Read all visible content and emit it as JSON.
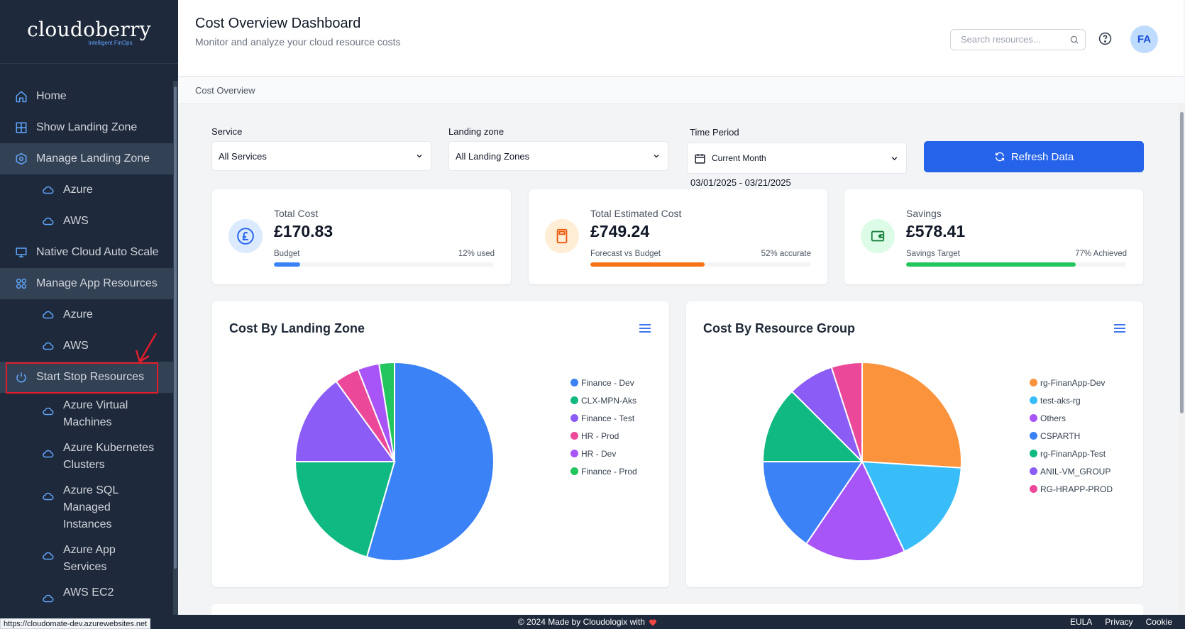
{
  "brand": {
    "name": "cloudoberry",
    "tagline": "Intelligent FinOps"
  },
  "sidebar": {
    "items": [
      {
        "label": "Home",
        "icon": "home-icon"
      },
      {
        "label": "Show Landing Zone",
        "icon": "grid-icon"
      },
      {
        "label": "Manage Landing Zone",
        "icon": "hexagon-settings-icon"
      },
      {
        "label": "Azure",
        "icon": "cloud-icon"
      },
      {
        "label": "AWS",
        "icon": "cloud-icon"
      },
      {
        "label": "Native Cloud Auto Scale",
        "icon": "monitor-icon"
      },
      {
        "label": "Manage App Resources",
        "icon": "apps-icon"
      },
      {
        "label": "Azure",
        "icon": "cloud-icon"
      },
      {
        "label": "AWS",
        "icon": "cloud-icon"
      },
      {
        "label": "Start Stop Resources",
        "icon": "power-icon"
      },
      {
        "label": "Azure Virtual Machines",
        "icon": "cloud-icon"
      },
      {
        "label": "Azure Kubernetes Clusters",
        "icon": "cloud-icon"
      },
      {
        "label": "Azure SQL Managed Instances",
        "icon": "cloud-icon"
      },
      {
        "label": "Azure App Services",
        "icon": "cloud-icon"
      },
      {
        "label": "AWS EC2",
        "icon": "cloud-icon"
      }
    ]
  },
  "header": {
    "title": "Cost Overview Dashboard",
    "subtitle": "Monitor and analyze your cloud resource costs",
    "search_placeholder": "Search resources...",
    "avatar_initials": "FA"
  },
  "breadcrumb": "Cost Overview",
  "filters": {
    "service_label": "Service",
    "service_value": "All Services",
    "landing_label": "Landing zone",
    "landing_value": "All Landing Zones",
    "period_label": "Time Period",
    "period_value": "Current Month",
    "date_range": "03/01/2025 - 03/21/2025",
    "refresh_label": "Refresh Data"
  },
  "stats": [
    {
      "label": "Total Cost",
      "value": "£170.83",
      "sub": "Budget",
      "right": "12% used",
      "progress": 0.12,
      "color": "#3b82f6",
      "icon": "pound-icon"
    },
    {
      "label": "Total Estimated Cost",
      "value": "£749.24",
      "sub": "Forecast vs Budget",
      "right": "52% accurate",
      "progress": 0.52,
      "color": "#f97316",
      "icon": "calculator-icon"
    },
    {
      "label": "Savings",
      "value": "£578.41",
      "sub": "Savings Target",
      "right": "77% Achieved",
      "progress": 0.77,
      "color": "#22c55e",
      "icon": "wallet-icon"
    }
  ],
  "charts": {
    "landing": {
      "title": "Cost By Landing Zone"
    },
    "resource": {
      "title": "Cost By Resource Group"
    }
  },
  "chart_data": [
    {
      "type": "pie",
      "title": "Cost By Landing Zone",
      "categories": [
        "Finance - Dev",
        "CLX-MPN-Aks",
        "Finance - Test",
        "HR - Prod",
        "HR - Dev",
        "Finance - Prod"
      ],
      "values": [
        54.5,
        20.5,
        15.0,
        4.0,
        3.5,
        2.5
      ],
      "colors": [
        "#3b82f6",
        "#10b981",
        "#8b5cf6",
        "#ec4899",
        "#a855f7",
        "#22c55e"
      ],
      "legend": "right"
    },
    {
      "type": "pie",
      "title": "Cost By Resource Group",
      "categories": [
        "rg-FinanApp-Dev",
        "test-aks-rg",
        "Others",
        "CSPARTH",
        "rg-FinanApp-Test",
        "ANIL-VM_GROUP",
        "RG-HRAPP-PROD"
      ],
      "values": [
        26.0,
        17.0,
        16.5,
        15.5,
        12.5,
        7.5,
        5.0
      ],
      "colors": [
        "#fb923c",
        "#38bdf8",
        "#a855f7",
        "#3b82f6",
        "#10b981",
        "#8b5cf6",
        "#ec4899"
      ],
      "legend": "right"
    }
  ],
  "footer": {
    "copyright": "© 2024 Made by Cloudologix with",
    "links": [
      "EULA",
      "Privacy",
      "Cookie"
    ]
  },
  "status_url": "https://cloudomate-dev.azurewebsites.net"
}
